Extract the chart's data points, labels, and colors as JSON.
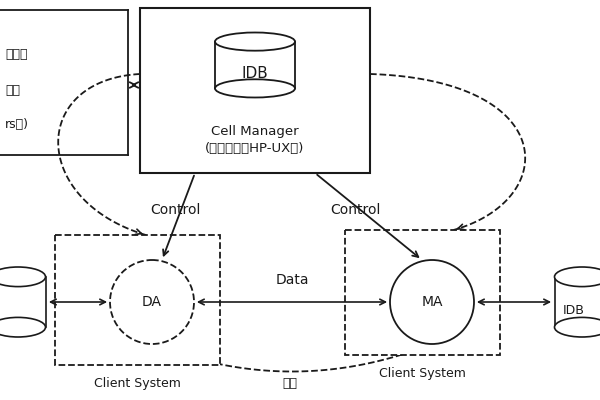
{
  "background": "#ffffff",
  "cell_manager_label": "Cell Manager\n(安装在内网HP-UX上)",
  "idb_label": "IDB",
  "da_label": "DA",
  "ma_label": "MA",
  "left_client_label": "Client System",
  "right_client_label": "Client System",
  "data_label": "Data",
  "control_label": "Control",
  "network_label": "网络",
  "idb_label2": "IDB",
  "line_color": "#1a1a1a",
  "font_size": 10,
  "small_font": 9
}
